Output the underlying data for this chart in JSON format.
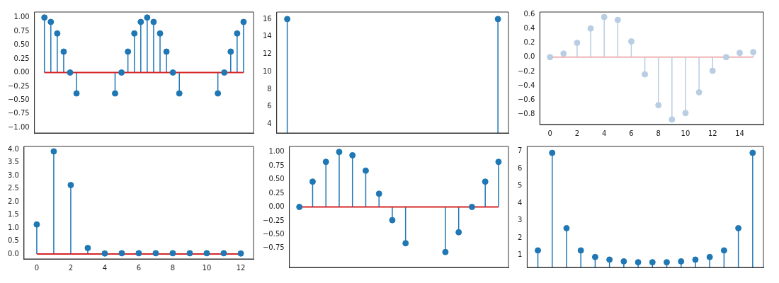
{
  "chart_data": [
    {
      "type": "lollipop",
      "categories": [
        null,
        null,
        null,
        null,
        null,
        null,
        null,
        null,
        null,
        null,
        null,
        null,
        null,
        null,
        null,
        null,
        null,
        null,
        null,
        null,
        null,
        null,
        null,
        null,
        null,
        null,
        null,
        null,
        null,
        null,
        null,
        null
      ],
      "values": [
        1.0,
        0.92,
        0.71,
        0.38,
        0.0,
        -0.38,
        null,
        null,
        null,
        null,
        null,
        -0.38,
        0.0,
        0.38,
        0.71,
        0.92,
        1.0,
        0.92,
        0.71,
        0.38,
        0.0,
        -0.38,
        null,
        null,
        null,
        null,
        null,
        -0.38,
        0.0,
        0.38,
        0.71,
        0.92
      ],
      "color": "#1f77b4",
      "marker": "circle",
      "ylim": [
        -1.1,
        1.1
      ],
      "yticks": [
        {
          "value": -1,
          "label": "−1.00"
        },
        {
          "value": -0.75,
          "label": "−0.75"
        },
        {
          "value": -0.5,
          "label": "−0.50"
        },
        {
          "value": -0.25,
          "label": "−0.25"
        },
        {
          "value": 0,
          "label": "0.00"
        },
        {
          "value": 0.25,
          "label": "0.25"
        },
        {
          "value": 0.5,
          "label": "0.50"
        },
        {
          "value": 0.75,
          "label": "0.75"
        },
        {
          "value": 1,
          "label": "1.00"
        }
      ],
      "ref_lines": [
        {
          "axis": "y",
          "value": 0,
          "color": "#d62728"
        }
      ],
      "tick_labels": "y"
    },
    {
      "type": "lollipop",
      "categories": [
        null,
        null,
        null,
        null,
        null,
        null,
        null,
        null,
        null,
        null,
        null,
        null,
        null,
        null,
        null,
        null
      ],
      "values": [
        16,
        null,
        null,
        null,
        null,
        null,
        null,
        null,
        null,
        null,
        null,
        null,
        null,
        null,
        null,
        16
      ],
      "color": "#1f77b4",
      "marker": "circle",
      "ylim": [
        3,
        16.8
      ],
      "yticks": [
        4,
        6,
        8,
        10,
        12,
        14,
        16
      ],
      "tick_labels": "y"
    },
    {
      "type": "lollipop",
      "x": [
        0,
        1,
        2,
        3,
        4,
        5,
        6,
        7,
        8,
        9,
        10,
        11,
        12,
        13,
        14,
        15
      ],
      "values": [
        0.0,
        0.05,
        0.2,
        0.4,
        0.56,
        0.52,
        0.22,
        -0.24,
        -0.67,
        -0.87,
        -0.78,
        -0.49,
        -0.19,
        0.0,
        0.06,
        0.07
      ],
      "color": "#b9cde3",
      "marker": "circle",
      "xlim": [
        -0.75,
        15.75
      ],
      "xticks": [
        0,
        2,
        4,
        6,
        8,
        10,
        12,
        14
      ],
      "ylim": [
        -0.94,
        0.63
      ],
      "yticks": [
        {
          "value": -0.8,
          "label": "−0.8"
        },
        {
          "value": -0.6,
          "label": "−0.6"
        },
        {
          "value": -0.4,
          "label": "−0.4"
        },
        {
          "value": -0.2,
          "label": "−0.2"
        },
        {
          "value": 0,
          "label": "0.0"
        },
        {
          "value": 0.2,
          "label": "0.2"
        },
        {
          "value": 0.4,
          "label": "0.4"
        },
        {
          "value": 0.6,
          "label": "0.6"
        }
      ],
      "ref_lines": [
        {
          "axis": "y",
          "value": 0,
          "color": "#f0b4b4"
        }
      ]
    },
    {
      "type": "lollipop",
      "x": [
        0,
        1,
        2,
        3,
        4,
        5,
        6,
        7,
        8,
        9,
        10,
        11,
        12
      ],
      "values": [
        1.13,
        3.93,
        2.64,
        0.23,
        0.02,
        0.03,
        0.03,
        0.03,
        0.03,
        0.03,
        0.03,
        0.03,
        0.02
      ],
      "color": "#1f77b4",
      "marker": "circle",
      "xlim": [
        -0.75,
        12.75
      ],
      "xticks": [
        0,
        2,
        4,
        6,
        8,
        10,
        12
      ],
      "ylim": [
        -0.19,
        4.12
      ],
      "yticks": [
        {
          "value": 0,
          "label": "0.0"
        },
        {
          "value": 0.5,
          "label": "0.5"
        },
        {
          "value": 1,
          "label": "1.0"
        },
        {
          "value": 1.5,
          "label": "1.5"
        },
        {
          "value": 2,
          "label": "2.0"
        },
        {
          "value": 2.5,
          "label": "2.5"
        },
        {
          "value": 3,
          "label": "3.0"
        },
        {
          "value": 3.5,
          "label": "3.5"
        },
        {
          "value": 4,
          "label": "4.0"
        }
      ],
      "ref_lines": [
        {
          "axis": "y",
          "value": 0,
          "color": "#d62728"
        }
      ]
    },
    {
      "type": "lollipop",
      "categories": [
        null,
        null,
        null,
        null,
        null,
        null,
        null,
        null,
        null,
        null,
        null,
        null,
        null,
        null,
        null,
        null
      ],
      "values": [
        0.0,
        0.46,
        0.82,
        1.0,
        0.94,
        0.66,
        0.24,
        -0.24,
        -0.66,
        null,
        null,
        -0.82,
        -0.46,
        0.0,
        0.46,
        0.82
      ],
      "color": "#1f77b4",
      "marker": "circle",
      "ylim": [
        -1.1,
        1.1
      ],
      "yticks": [
        {
          "value": -0.75,
          "label": "−0.75"
        },
        {
          "value": -0.5,
          "label": "−0.50"
        },
        {
          "value": -0.25,
          "label": "−0.25"
        },
        {
          "value": 0,
          "label": "0.00"
        },
        {
          "value": 0.25,
          "label": "0.25"
        },
        {
          "value": 0.5,
          "label": "0.50"
        },
        {
          "value": 0.75,
          "label": "0.75"
        },
        {
          "value": 1,
          "label": "1.00"
        }
      ],
      "ref_lines": [
        {
          "axis": "y",
          "value": 0,
          "color": "#d62728"
        }
      ],
      "tick_labels": "y"
    },
    {
      "type": "lollipop",
      "categories": [
        null,
        null,
        null,
        null,
        null,
        null,
        null,
        null,
        null,
        null,
        null,
        null,
        null,
        null,
        null,
        null
      ],
      "values": [
        1.28,
        6.9,
        2.56,
        1.28,
        0.9,
        0.75,
        0.65,
        0.6,
        0.6,
        0.6,
        0.65,
        0.75,
        0.9,
        1.28,
        2.56,
        6.9
      ],
      "color": "#1f77b4",
      "marker": "circle",
      "ylim": [
        0.3,
        7.27
      ],
      "yticks": [
        1,
        2,
        3,
        4,
        5,
        6,
        7
      ],
      "tick_labels": "y"
    }
  ]
}
